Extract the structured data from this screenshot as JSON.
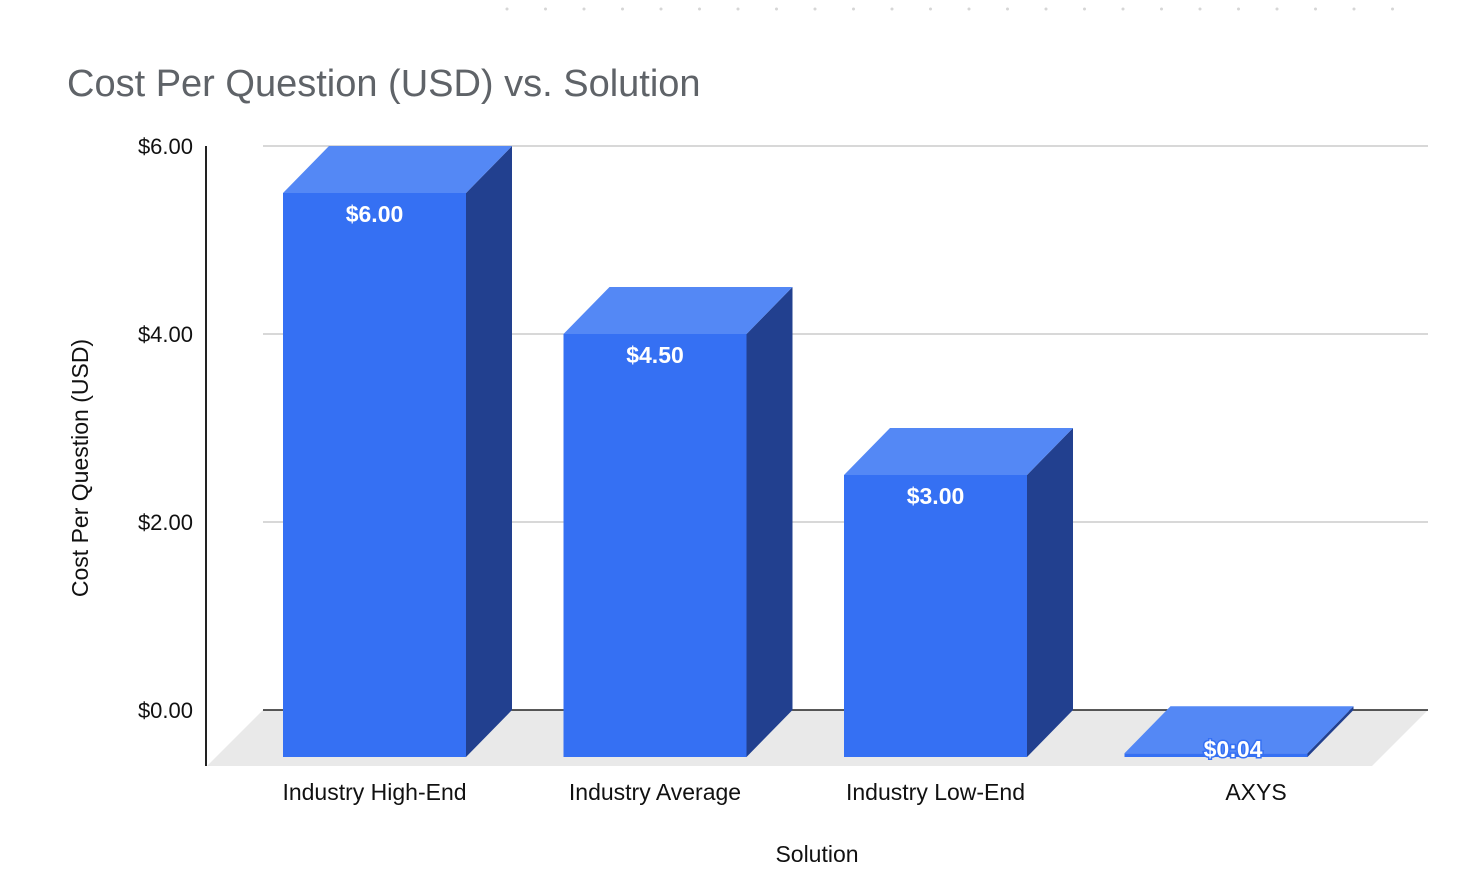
{
  "chart_data": {
    "type": "bar",
    "title": "Cost Per Question (USD) vs. Solution",
    "xlabel": "Solution",
    "ylabel": "Cost Per Question (USD)",
    "categories": [
      "Industry High-End",
      "Industry Average",
      "Industry Low-End",
      "AXYS"
    ],
    "values": [
      6.0,
      4.5,
      3.0,
      0.04
    ],
    "data_labels": [
      "$6.00",
      "$4.50",
      "$3.00",
      "$0:04"
    ],
    "yticks": [
      0,
      2,
      4,
      6
    ],
    "ytick_labels": [
      "$0.00",
      "$2.00",
      "$4.00",
      "$6.00"
    ],
    "ylim": [
      0,
      6
    ],
    "grid": true,
    "legend": "none",
    "three_d": true,
    "colors": {
      "bar_front": "#3570f3",
      "bar_top": "#5488f5",
      "bar_side": "#22408f",
      "floor": "#e9e9e9",
      "gridline": "#cccccc",
      "axis": "#222222",
      "title": "#5f6368"
    }
  }
}
